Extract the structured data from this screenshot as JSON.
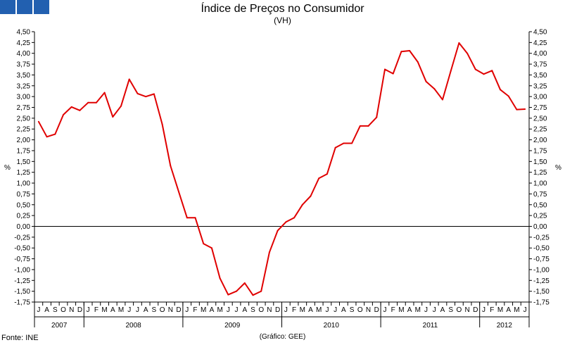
{
  "header": {
    "title": "Índice de Preços no Consumidor",
    "subtitle": "(VH)",
    "logo_icon": "grid-logo-icon"
  },
  "footer": {
    "source": "Fonte: INE",
    "credit": "(Gráfico: GEE)"
  },
  "colors": {
    "series": "#e00000",
    "logo": "#2260b0"
  },
  "chart_data": {
    "type": "line",
    "title": "Índice de Preços no Consumidor",
    "subtitle": "(VH)",
    "ylabel_left": "%",
    "ylabel_right": "%",
    "ylim": [
      -1.75,
      4.5
    ],
    "yticks": [
      "4,50",
      "4,25",
      "4,00",
      "3,75",
      "3,50",
      "3,25",
      "3,00",
      "2,75",
      "2,50",
      "2,25",
      "2,00",
      "1,75",
      "1,50",
      "1,25",
      "1,00",
      "0,75",
      "0,50",
      "0,25",
      "0,00",
      "-0,25",
      "-0,50",
      "-0,75",
      "-1,00",
      "-1,25",
      "-1,50",
      "-1,75"
    ],
    "month_labels": [
      "J",
      "A",
      "S",
      "O",
      "N",
      "D",
      "J",
      "F",
      "M",
      "A",
      "M",
      "J",
      "J",
      "A",
      "S",
      "O",
      "N",
      "D",
      "J",
      "F",
      "M",
      "A",
      "M",
      "J",
      "J",
      "A",
      "S",
      "O",
      "N",
      "D",
      "J",
      "F",
      "M",
      "A",
      "M",
      "J",
      "J",
      "A",
      "S",
      "O",
      "N",
      "D",
      "J",
      "F",
      "M",
      "A",
      "M",
      "J",
      "J",
      "A",
      "S",
      "O",
      "N",
      "D",
      "J",
      "F",
      "M",
      "A",
      "M",
      "J"
    ],
    "years": [
      {
        "label": "2007",
        "start": 0,
        "count": 6
      },
      {
        "label": "2008",
        "start": 6,
        "count": 12
      },
      {
        "label": "2009",
        "start": 18,
        "count": 12
      },
      {
        "label": "2010",
        "start": 30,
        "count": 12
      },
      {
        "label": "2011",
        "start": 42,
        "count": 12
      },
      {
        "label": "2012",
        "start": 54,
        "count": 6
      }
    ],
    "grid": false,
    "series": [
      {
        "values": [
          2.42,
          2.07,
          2.13,
          2.58,
          2.76,
          2.68,
          2.86,
          2.86,
          3.09,
          2.53,
          2.78,
          3.4,
          3.07,
          3.0,
          3.06,
          2.36,
          1.4,
          0.8,
          0.2,
          0.2,
          -0.4,
          -0.5,
          -1.2,
          -1.58,
          -1.5,
          -1.31,
          -1.59,
          -1.5,
          -0.6,
          -0.1,
          0.1,
          0.2,
          0.5,
          0.7,
          1.11,
          1.21,
          1.82,
          1.92,
          1.92,
          2.32,
          2.32,
          2.52,
          3.63,
          3.53,
          4.04,
          4.06,
          3.8,
          3.35,
          3.18,
          2.93,
          3.59,
          4.24,
          4.0,
          3.63,
          3.52,
          3.6,
          3.16,
          3.01,
          2.7,
          2.71
        ]
      }
    ]
  }
}
